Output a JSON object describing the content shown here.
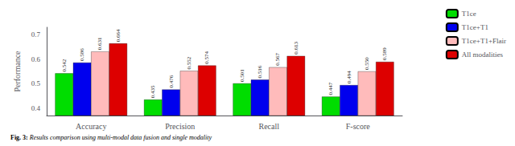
{
  "chart_data": {
    "type": "bar",
    "ylabel": "Performance",
    "annotations": [
      "Fig. 3:",
      "Results comparison using multi-modal data fusion and single modality"
    ],
    "categories": [
      "Accuracy",
      "Precision",
      "Recall",
      "F-score"
    ],
    "series": [
      {
        "name": "T1ce",
        "color": "#00dd00",
        "values": [
          0.542,
          0.435,
          0.501,
          0.447
        ],
        "value_labels": [
          "0.542",
          "0.435",
          "0.501",
          "0.447"
        ]
      },
      {
        "name": "T1ce+T1",
        "color": "#0000ee",
        "values": [
          0.586,
          0.476,
          0.516,
          0.494
        ],
        "value_labels": [
          "0.586",
          "0.476",
          "0.516",
          "0.494"
        ]
      },
      {
        "name": "T1ce+T1+Flair",
        "color": "#ffbbbb",
        "values": [
          0.631,
          0.552,
          0.567,
          0.55
        ],
        "value_labels": [
          "0.631",
          "0.552",
          "0.567",
          "0.550"
        ]
      },
      {
        "name": "All modalities",
        "color": "#dd0000",
        "values": [
          0.664,
          0.574,
          0.613,
          0.589
        ],
        "value_labels": [
          "0.664",
          "0.574",
          "0.613",
          "0.589"
        ]
      }
    ],
    "ylim": [
      0.37,
      0.73
    ],
    "yticks": [
      0.4,
      0.5,
      0.6,
      0.7
    ],
    "grid": false,
    "legend": "upper right",
    "data_labels": true
  }
}
